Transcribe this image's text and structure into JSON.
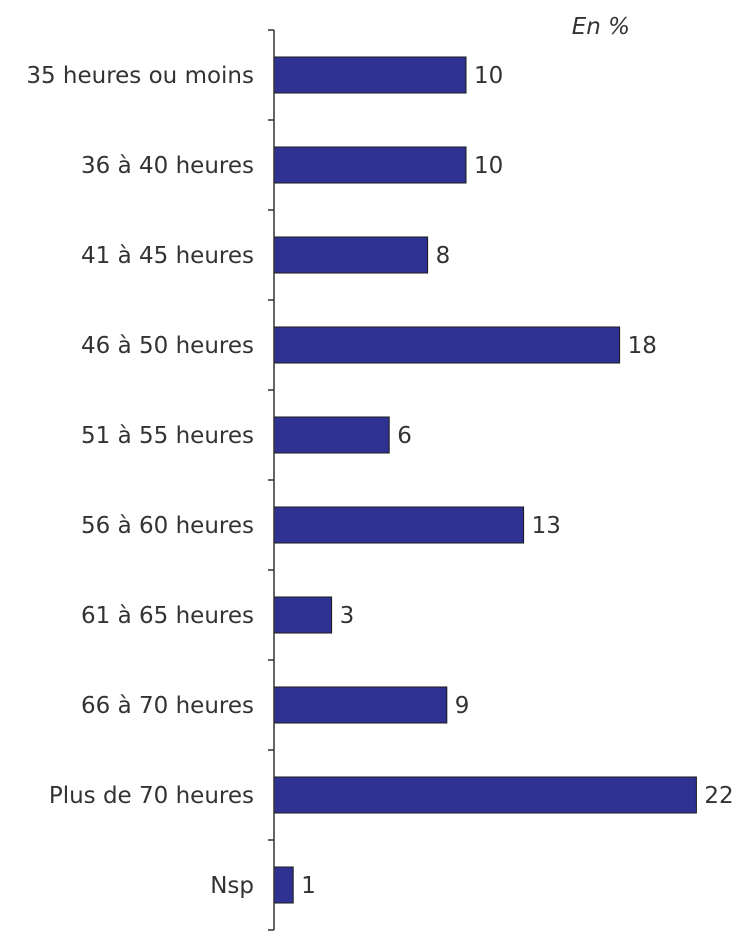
{
  "chart_data": {
    "type": "bar",
    "orientation": "horizontal",
    "unit_label": "En %",
    "categories": [
      "35 heures ou moins",
      "36 à 40 heures",
      "41 à 45 heures",
      "46 à 50 heures",
      "51 à 55 heures",
      "56 à 60 heures",
      "61 à 65 heures",
      "66 à 70 heures",
      "Plus de 70 heures",
      "Nsp"
    ],
    "values": [
      10,
      10,
      8,
      18,
      6,
      13,
      3,
      9,
      22,
      1
    ],
    "data_labels": [
      "10",
      "10",
      "8",
      "18",
      "6",
      "13",
      "3",
      "9",
      "22",
      "1"
    ],
    "xlim": [
      0,
      22
    ],
    "grid": false,
    "legend": "none",
    "colors": {
      "bar_fill": "#2E3192",
      "bar_stroke": "#1a1a1a",
      "axis": "#333333",
      "text": "#333333"
    }
  }
}
